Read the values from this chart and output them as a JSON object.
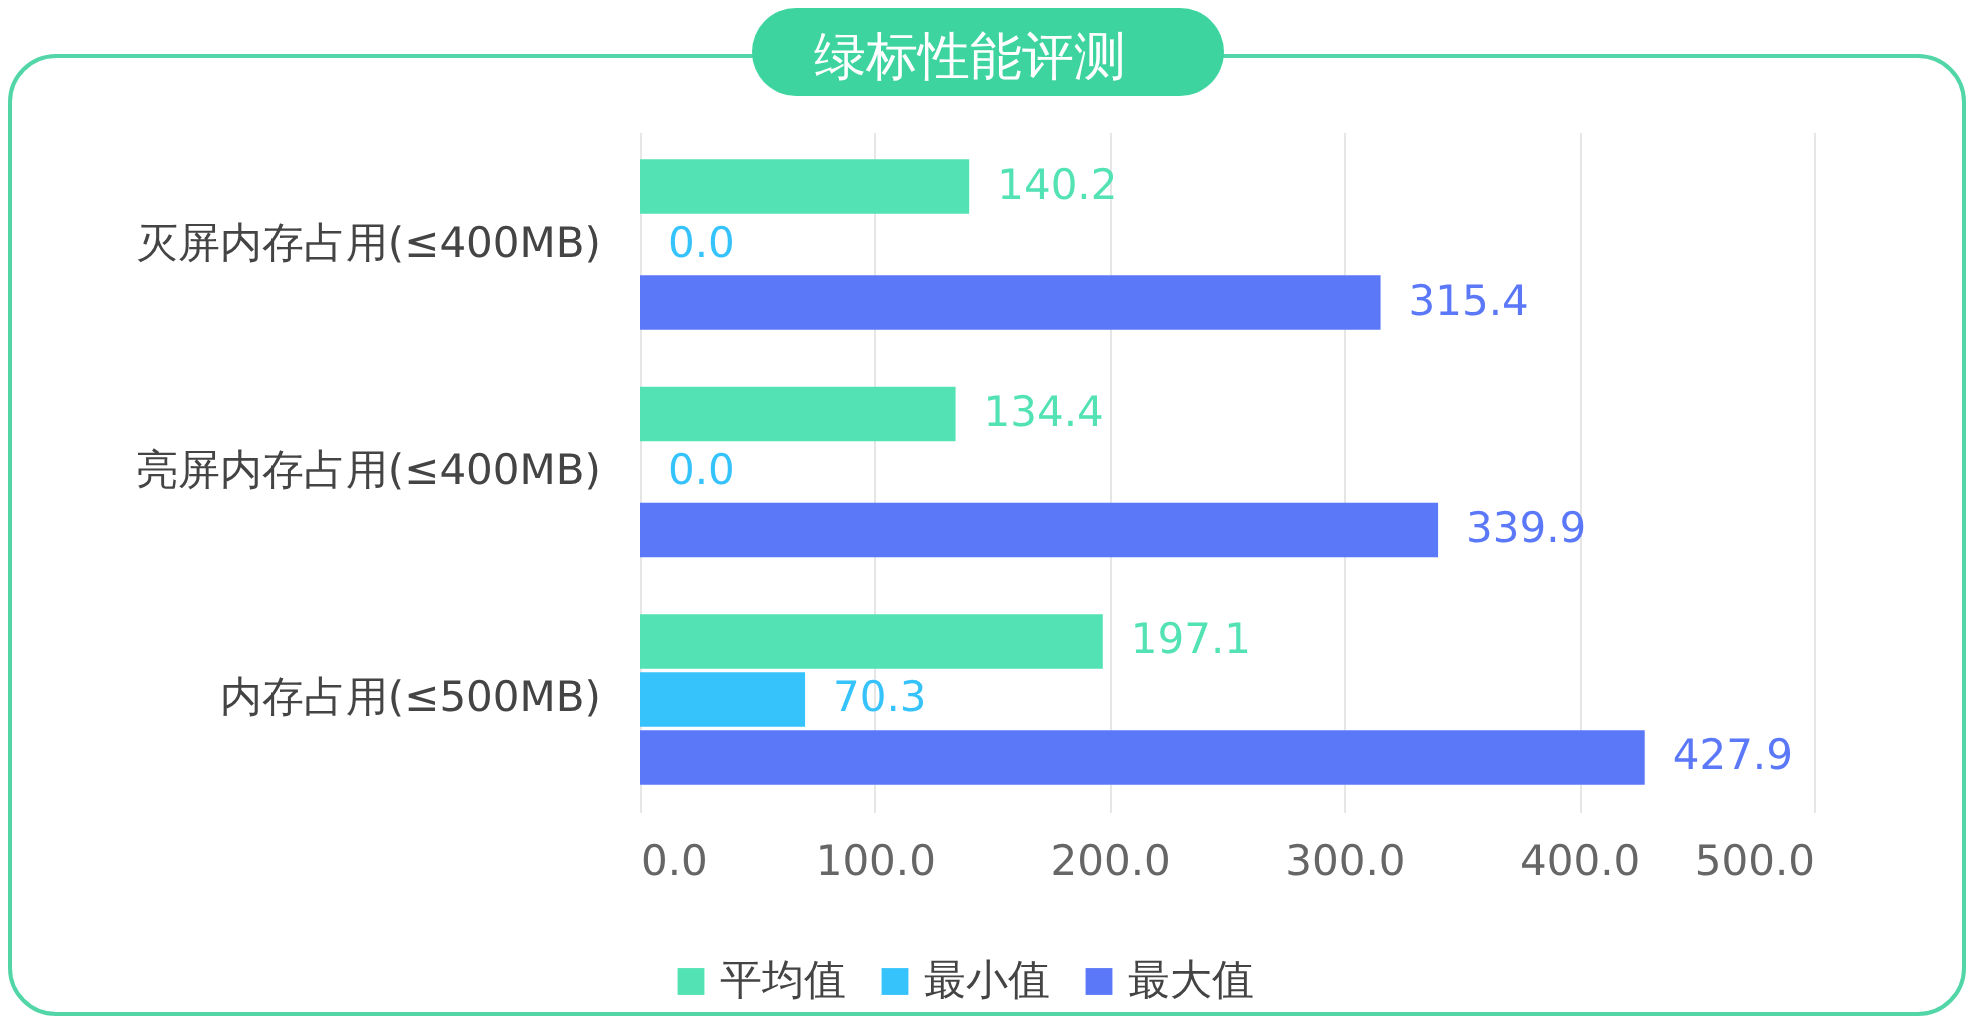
{
  "chart_data": {
    "type": "bar",
    "orientation": "horizontal",
    "title": "绿标性能评测",
    "categories": [
      "灭屏内存占用(≤400MB)",
      "亮屏内存占用(≤400MB)",
      "内存占用(≤500MB)"
    ],
    "series": [
      {
        "name": "平均值",
        "color": "#52e2b4",
        "values": [
          140.2,
          134.4,
          197.1
        ],
        "value_labels": [
          "140.2",
          "134.4",
          "197.1"
        ]
      },
      {
        "name": "最小值",
        "color": "#36c3fc",
        "values": [
          0,
          0,
          70.3
        ],
        "value_labels": [
          "0.0",
          "0.0",
          "70.3"
        ]
      },
      {
        "name": "最大值",
        "color": "#5a78f8",
        "values": [
          315.4,
          339.9,
          427.9
        ],
        "value_labels": [
          "315.4",
          "339.9",
          "427.9"
        ]
      }
    ],
    "xlim": [
      0,
      500
    ],
    "xticks": [
      {
        "value": 0,
        "label": "0.0"
      },
      {
        "value": 100,
        "label": "100.0"
      },
      {
        "value": 200,
        "label": "200.0"
      },
      {
        "value": 300,
        "label": "300.0"
      },
      {
        "value": 400,
        "label": "400.0"
      },
      {
        "value": 500,
        "label": "500.0"
      }
    ],
    "grid": "x",
    "legend": "bottom"
  }
}
